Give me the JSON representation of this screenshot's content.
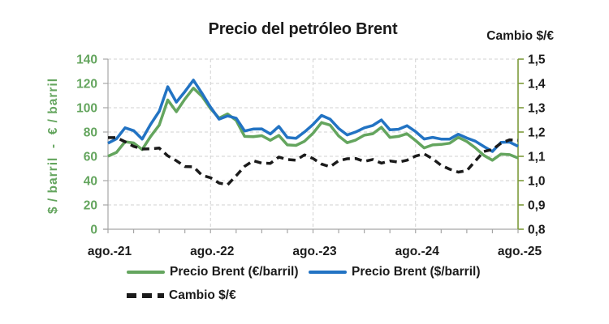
{
  "colors": {
    "brent_eur_green": "#64a55e",
    "brent_usd_blue": "#2273c3",
    "cambio_black": "#1b1b1b",
    "right_axis_olive": "#7d9b3b",
    "axis_gray": "#a6a6a6",
    "gridline_gray": "#d2d2d2",
    "background": "#ffffff"
  },
  "chart_data": {
    "type": "line",
    "title": "Precio del petróleo Brent",
    "x_unit": "month",
    "x_first": "ago.-21",
    "x_last": "ago.-25",
    "x_tick_labels": [
      "ago.-21",
      "ago.-22",
      "ago.-23",
      "ago.-24",
      "ago.-25"
    ],
    "x_tick_indices": [
      0,
      12,
      24,
      36,
      48
    ],
    "x_minor_tick_every": 3,
    "grid": "dashed",
    "legend_position": "bottom-left",
    "left_axis": {
      "title": "$ / barril  -  € / barril",
      "min": 0,
      "max": 140,
      "step": 20,
      "tick_labels": [
        "0",
        "20",
        "40",
        "60",
        "80",
        "100",
        "120",
        "140"
      ]
    },
    "right_axis": {
      "title": "Cambio $/€",
      "min": 0.8,
      "max": 1.5,
      "step": 0.1,
      "tick_labels": [
        "0,8",
        "0,9",
        "1,0",
        "1,1",
        "1,2",
        "1,3",
        "1,4",
        "1,5"
      ]
    },
    "series": [
      {
        "key": "brent_eur",
        "name": "Precio Brent (€/barril)",
        "axis": "left",
        "color": "#64a55e",
        "style": "solid",
        "values": [
          60.1,
          63.3,
          72.0,
          71.0,
          65.6,
          76.5,
          85.7,
          106.4,
          96.7,
          107.1,
          116.1,
          109.5,
          99.3,
          91.5,
          94.9,
          89.6,
          76.4,
          76.2,
          77.0,
          73.2,
          77.2,
          69.4,
          69.0,
          72.4,
          79.0,
          87.8,
          85.7,
          76.7,
          71.2,
          73.4,
          77.4,
          78.6,
          83.9,
          75.6,
          76.4,
          78.6,
          73.0,
          66.9,
          69.4,
          69.8,
          70.8,
          75.6,
          72.2,
          67.0,
          60.8,
          56.8,
          61.9,
          61.4,
          58.6
        ]
      },
      {
        "key": "brent_usd",
        "name": "Precio Brent ($/barril)",
        "axis": "left",
        "color": "#2273c3",
        "style": "solid",
        "values": [
          70.8,
          74.5,
          83.5,
          81.1,
          74.2,
          86.5,
          97.1,
          117.3,
          104.6,
          113.3,
          122.7,
          111.9,
          100.5,
          90.6,
          93.3,
          91.4,
          80.9,
          82.5,
          82.6,
          78.4,
          84.6,
          75.5,
          74.8,
          80.1,
          86.2,
          93.7,
          90.6,
          82.9,
          77.6,
          80.1,
          83.5,
          85.4,
          89.9,
          81.8,
          82.3,
          85.2,
          80.4,
          74.3,
          75.6,
          74.2,
          74.2,
          78.2,
          75.1,
          72.5,
          68.1,
          64.0,
          71.5,
          71.7,
          68.3
        ]
      },
      {
        "key": "cambio",
        "name": "Cambio $/€",
        "axis": "right",
        "color": "#1b1b1b",
        "style": "dashed",
        "values": [
          1.177,
          1.177,
          1.16,
          1.141,
          1.13,
          1.131,
          1.134,
          1.102,
          1.082,
          1.058,
          1.057,
          1.022,
          1.012,
          0.99,
          0.983,
          1.02,
          1.059,
          1.082,
          1.072,
          1.071,
          1.097,
          1.087,
          1.084,
          1.106,
          1.091,
          1.068,
          1.057,
          1.082,
          1.09,
          1.091,
          1.079,
          1.087,
          1.072,
          1.081,
          1.076,
          1.084,
          1.101,
          1.11,
          1.09,
          1.063,
          1.047,
          1.035,
          1.041,
          1.081,
          1.12,
          1.128,
          1.154,
          1.168,
          1.166
        ]
      }
    ]
  }
}
